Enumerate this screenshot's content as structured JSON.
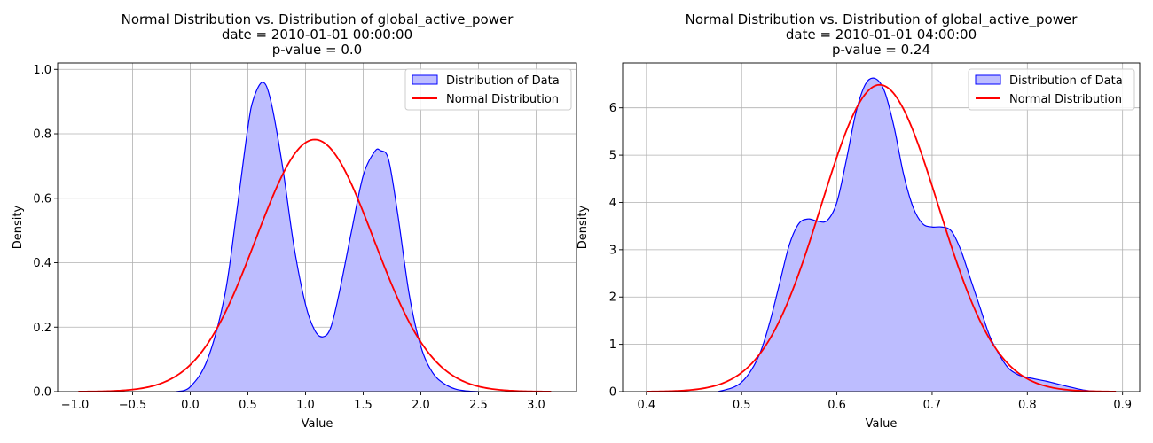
{
  "chart_data": [
    {
      "type": "area",
      "title_lines": [
        "Normal Distribution vs. Distribution of global_active_power",
        "date = 2010-01-01 00:00:00",
        "p-value = 0.0"
      ],
      "xlabel": "Value",
      "ylabel": "Density",
      "xlim": [
        -1.15,
        3.35
      ],
      "ylim": [
        0,
        1.02
      ],
      "xticks": [
        -1.0,
        -0.5,
        0.0,
        0.5,
        1.0,
        1.5,
        2.0,
        2.5,
        3.0
      ],
      "xtick_labels": [
        "−1.0",
        "−0.5",
        "0.0",
        "0.5",
        "1.0",
        "1.5",
        "2.0",
        "2.5",
        "3.0"
      ],
      "yticks": [
        0.0,
        0.2,
        0.4,
        0.6,
        0.8,
        1.0
      ],
      "ytick_labels": [
        "0.0",
        "0.2",
        "0.4",
        "0.6",
        "0.8",
        "1.0"
      ],
      "grid": true,
      "legend_position": "upper right",
      "series": [
        {
          "name": "Distribution of Data",
          "kind": "filled-kde",
          "color": "#0000ff",
          "fill": "#bdbdff",
          "x": [
            -0.12,
            0.0,
            0.15,
            0.3,
            0.4,
            0.5,
            0.55,
            0.63,
            0.7,
            0.8,
            0.9,
            1.0,
            1.08,
            1.15,
            1.22,
            1.3,
            1.4,
            1.5,
            1.6,
            1.65,
            1.72,
            1.8,
            1.9,
            2.0,
            2.1,
            2.2,
            2.3,
            2.4,
            2.5
          ],
          "y": [
            0.0,
            0.015,
            0.1,
            0.3,
            0.55,
            0.82,
            0.91,
            0.96,
            0.9,
            0.7,
            0.45,
            0.27,
            0.19,
            0.17,
            0.2,
            0.32,
            0.5,
            0.67,
            0.745,
            0.748,
            0.72,
            0.55,
            0.3,
            0.14,
            0.06,
            0.025,
            0.008,
            0.002,
            0.0
          ]
        },
        {
          "name": "Normal Distribution",
          "kind": "normal-pdf",
          "color": "#ff0000",
          "mean": 1.08,
          "std": 0.51,
          "x_range": [
            -0.97,
            3.13
          ]
        }
      ]
    },
    {
      "type": "area",
      "title_lines": [
        "Normal Distribution vs. Distribution of global_active_power",
        "date = 2010-01-01 04:00:00",
        "p-value = 0.24"
      ],
      "xlabel": "Value",
      "ylabel": "Density",
      "xlim": [
        0.375,
        0.918
      ],
      "ylim": [
        0,
        6.95
      ],
      "xticks": [
        0.4,
        0.5,
        0.6,
        0.7,
        0.8,
        0.9
      ],
      "xtick_labels": [
        "0.4",
        "0.5",
        "0.6",
        "0.7",
        "0.8",
        "0.9"
      ],
      "yticks": [
        0,
        1,
        2,
        3,
        4,
        5,
        6
      ],
      "ytick_labels": [
        "0",
        "1",
        "2",
        "3",
        "4",
        "5",
        "6"
      ],
      "grid": true,
      "legend_position": "upper right",
      "series": [
        {
          "name": "Distribution of Data",
          "kind": "filled-kde",
          "color": "#0000ff",
          "fill": "#bdbdff",
          "x": [
            0.475,
            0.49,
            0.5,
            0.51,
            0.52,
            0.53,
            0.54,
            0.55,
            0.56,
            0.57,
            0.58,
            0.59,
            0.6,
            0.61,
            0.62,
            0.63,
            0.64,
            0.65,
            0.66,
            0.67,
            0.68,
            0.69,
            0.7,
            0.71,
            0.72,
            0.73,
            0.74,
            0.75,
            0.76,
            0.77,
            0.78,
            0.79,
            0.8,
            0.82,
            0.84,
            0.86,
            0.875
          ],
          "y": [
            0.0,
            0.08,
            0.2,
            0.45,
            0.85,
            1.5,
            2.3,
            3.1,
            3.55,
            3.65,
            3.6,
            3.62,
            4.0,
            4.9,
            5.9,
            6.5,
            6.62,
            6.35,
            5.6,
            4.6,
            3.9,
            3.55,
            3.48,
            3.48,
            3.4,
            3.0,
            2.4,
            1.8,
            1.2,
            0.8,
            0.5,
            0.36,
            0.3,
            0.22,
            0.12,
            0.03,
            0.0
          ]
        },
        {
          "name": "Normal Distribution",
          "kind": "normal-pdf",
          "color": "#ff0000",
          "mean": 0.645,
          "std": 0.0615,
          "x_range": [
            0.4,
            0.893
          ]
        }
      ]
    }
  ]
}
